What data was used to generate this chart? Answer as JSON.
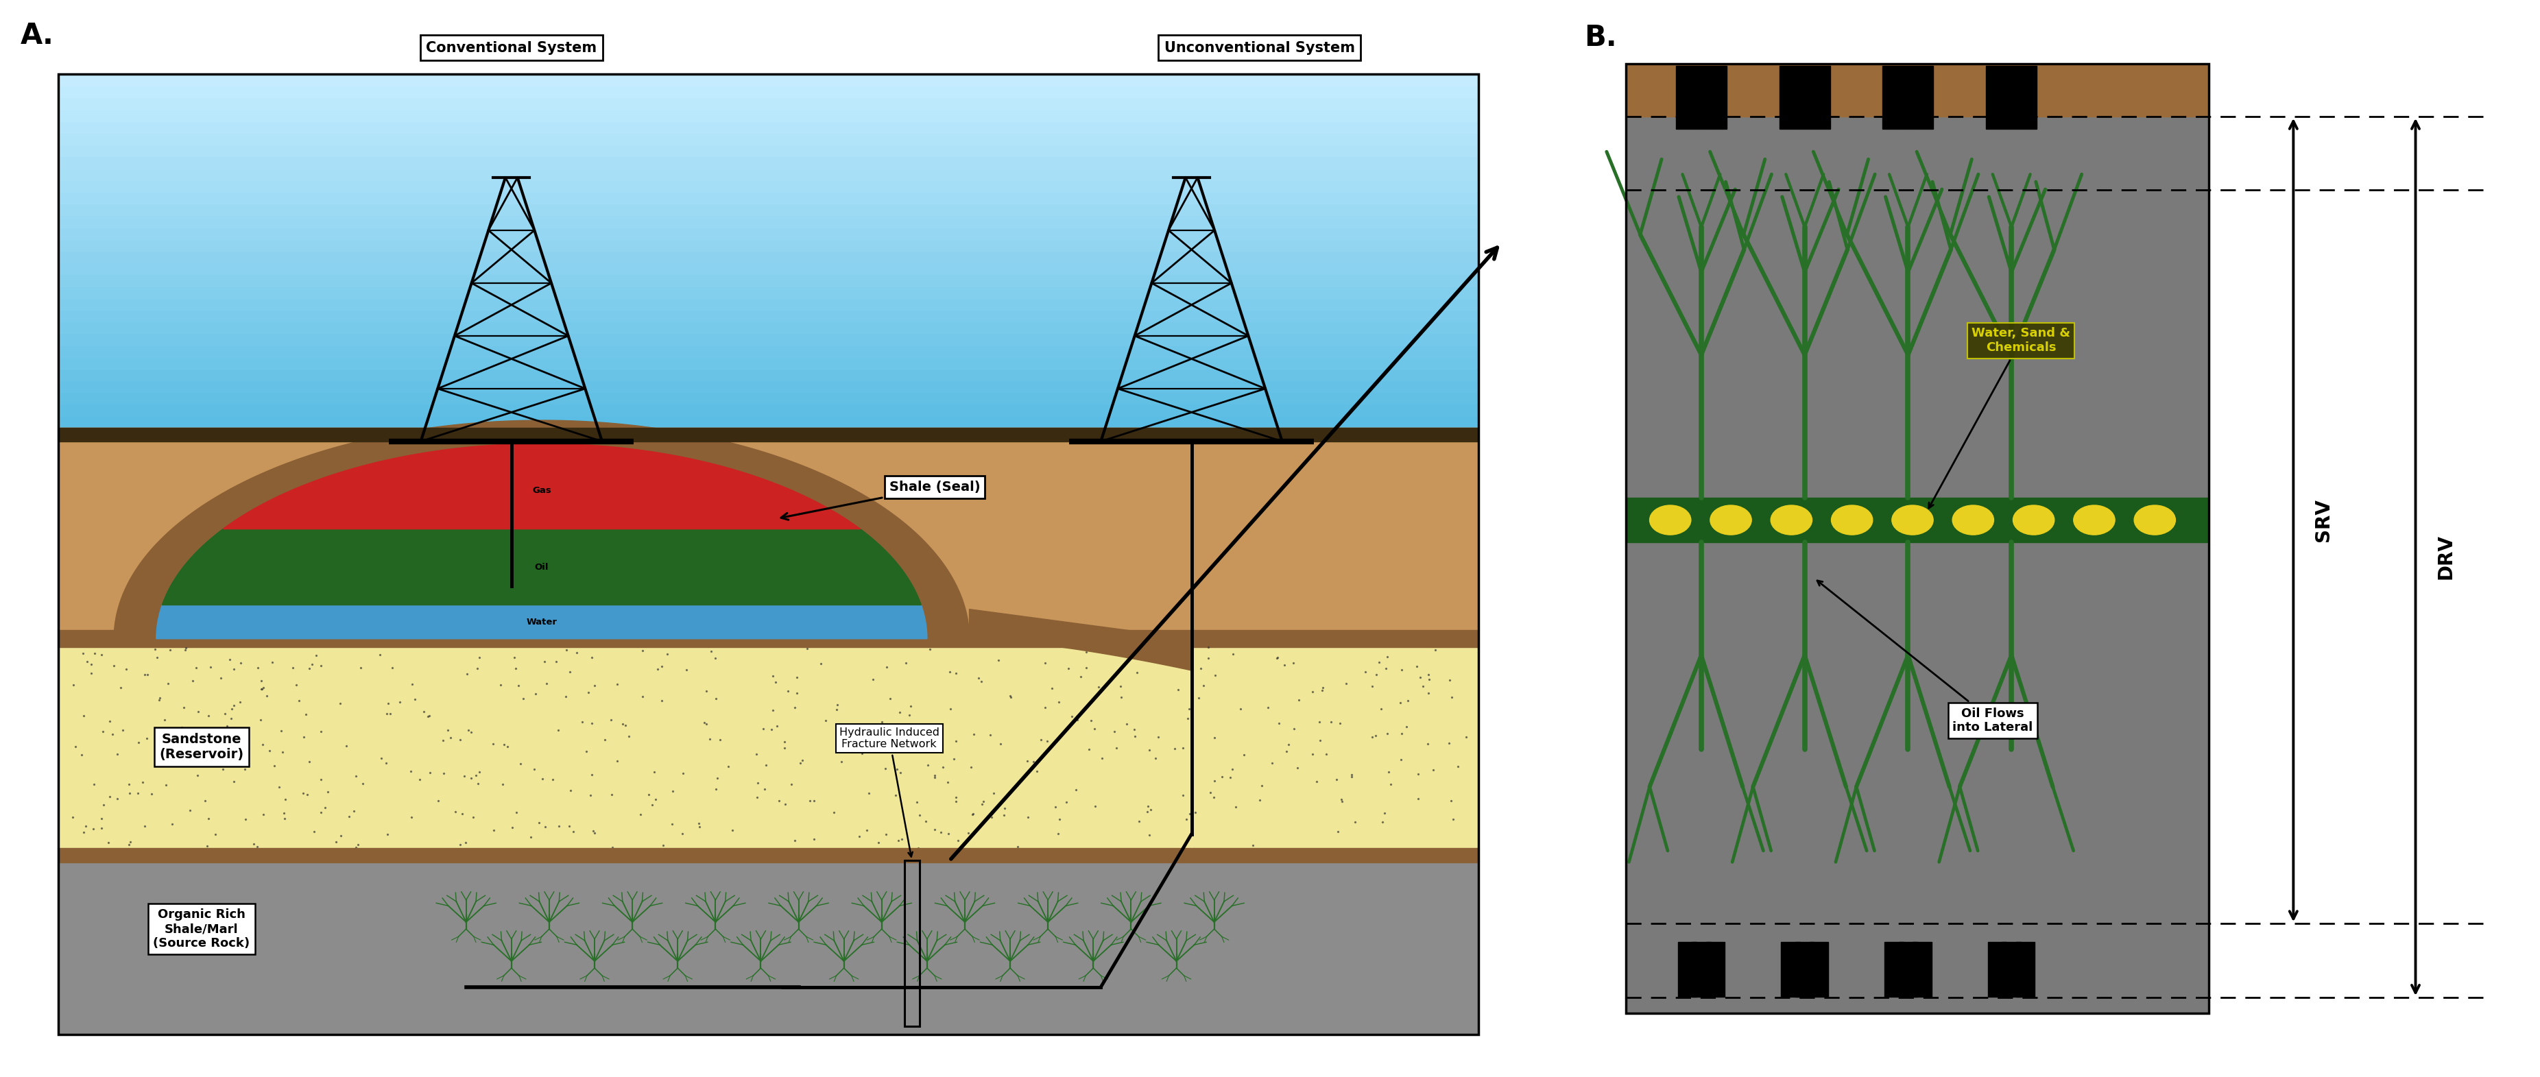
{
  "panel_a_label": "A.",
  "panel_b_label": "B.",
  "conv_system_label": "Conventional System",
  "unconv_system_label": "Unconventional System",
  "gas_label": "Gas",
  "oil_label": "Oil",
  "water_label": "Water",
  "shale_seal_label": "Shale (Seal)",
  "sandstone_label": "Sandstone\n(Reservoir)",
  "organic_rich_label": "Organic Rich\nShale/Marl\n(Source Rock)",
  "hydraulic_label": "Hydraulic Induced\nFracture Network",
  "water_sand_label": "Water, Sand &\nChemicals",
  "oil_flows_label": "Oil Flows\ninto Lateral",
  "srv_label": "SRV",
  "drv_label": "DRV",
  "sky_top_color": "#C8EEFF",
  "sky_bottom_color": "#5BBDE4",
  "ground_brown": "#C8955A",
  "ground_dark_brown": "#8B6035",
  "sandstone_color": "#F0E898",
  "source_rock_color": "#8C8C8C",
  "source_rock_dark": "#757575",
  "gas_color": "#CC2222",
  "oil_color": "#226622",
  "water_color": "#4499CC",
  "shale_seal_brown": "#8B6035",
  "green_fracture": "#2A7A2A",
  "lateral_dark_green": "#1A5A1A",
  "lateral_green": "#236B23",
  "proppant_yellow": "#E8D020",
  "black_plug": "#111111",
  "gray_box": "#808080",
  "brown_top": "#9B6B3A",
  "background_color": "#FFFFFF"
}
